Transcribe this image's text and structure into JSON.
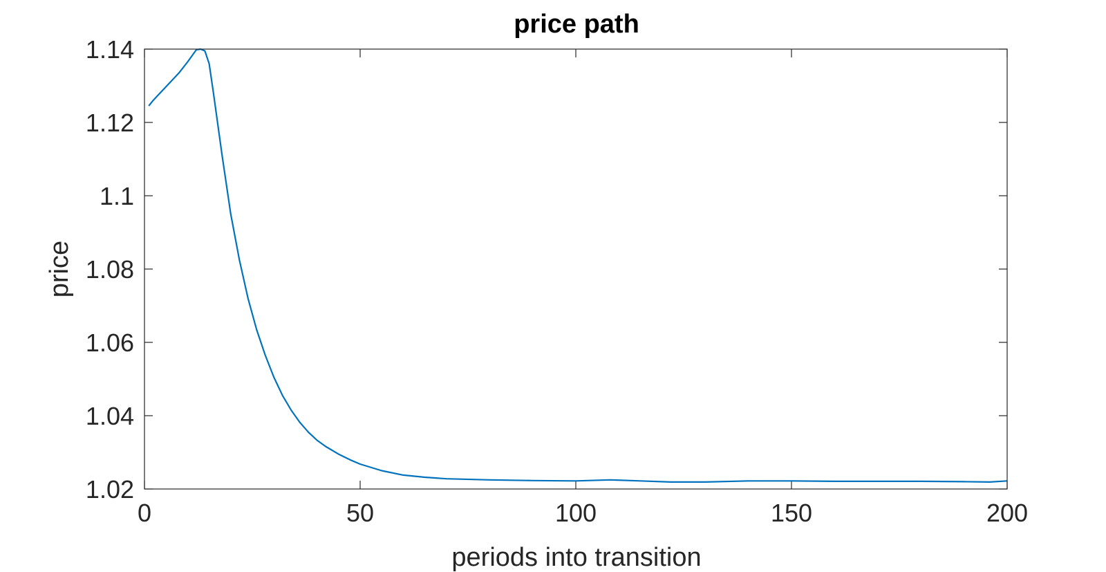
{
  "chart_data": {
    "type": "line",
    "title": "price path",
    "xlabel": "periods into transition",
    "ylabel": "price",
    "xlim": [
      0,
      200
    ],
    "ylim": [
      1.02,
      1.14
    ],
    "xticks": [
      0,
      50,
      100,
      150,
      200
    ],
    "xtick_labels": [
      "0",
      "50",
      "100",
      "150",
      "200"
    ],
    "yticks": [
      1.02,
      1.04,
      1.06,
      1.08,
      1.1,
      1.12,
      1.14
    ],
    "ytick_labels": [
      "1.02",
      "1.04",
      "1.06",
      "1.08",
      "1.1",
      "1.12",
      "1.14"
    ],
    "grid": false,
    "box": true,
    "series": [
      {
        "color": "#0072BD",
        "x": [
          1,
          2,
          4,
          6,
          8,
          10,
          12,
          13,
          14,
          15,
          16,
          18,
          20,
          22,
          24,
          26,
          28,
          30,
          32,
          34,
          36,
          38,
          40,
          42,
          45,
          48,
          50,
          55,
          60,
          65,
          70,
          80,
          90,
          100,
          108,
          115,
          122,
          130,
          140,
          150,
          160,
          170,
          180,
          190,
          196,
          200
        ],
        "y": [
          1.1245,
          1.126,
          1.1285,
          1.131,
          1.1335,
          1.1365,
          1.1398,
          1.14,
          1.1395,
          1.136,
          1.128,
          1.111,
          1.095,
          1.0825,
          1.072,
          1.0635,
          1.0565,
          1.0505,
          1.0455,
          1.0415,
          1.0382,
          1.0355,
          1.0333,
          1.0316,
          1.0295,
          1.0278,
          1.0268,
          1.025,
          1.0238,
          1.0232,
          1.0228,
          1.0225,
          1.0223,
          1.0222,
          1.0225,
          1.0222,
          1.0219,
          1.0219,
          1.0222,
          1.0222,
          1.0221,
          1.0221,
          1.0221,
          1.022,
          1.0219,
          1.0222
        ]
      }
    ]
  }
}
